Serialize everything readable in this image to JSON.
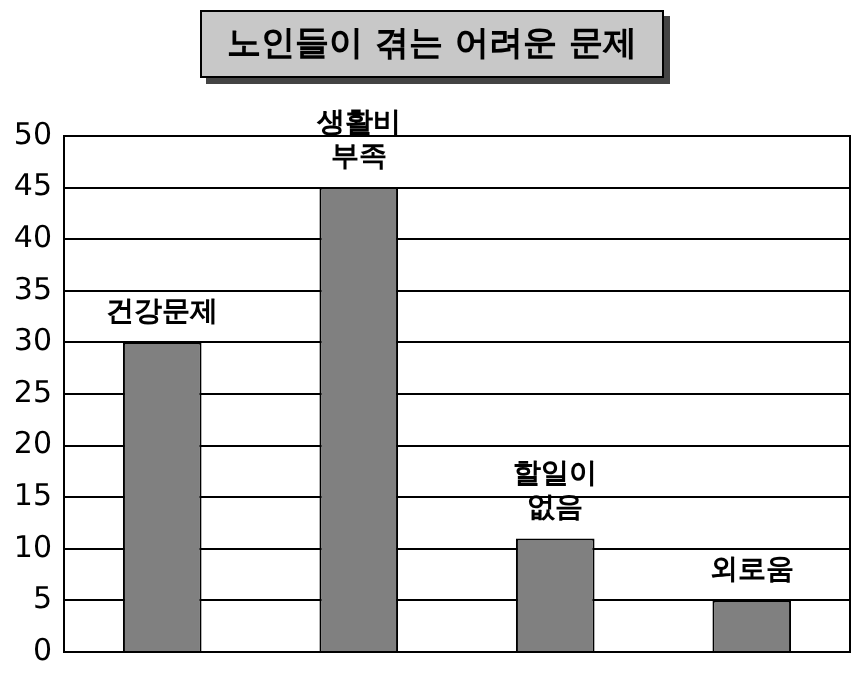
{
  "chart_data": {
    "type": "bar",
    "title": "노인들이 겪는 어려운 문제",
    "categories": [
      "건강문제",
      "생활비 부족",
      "할일이 없음",
      "외로움"
    ],
    "values": [
      30,
      45,
      11,
      5
    ],
    "color": "#808080",
    "ylim": [
      0,
      50
    ],
    "yticks": [
      0,
      5,
      10,
      15,
      20,
      25,
      30,
      35,
      40,
      45,
      50
    ],
    "grid": "y"
  }
}
